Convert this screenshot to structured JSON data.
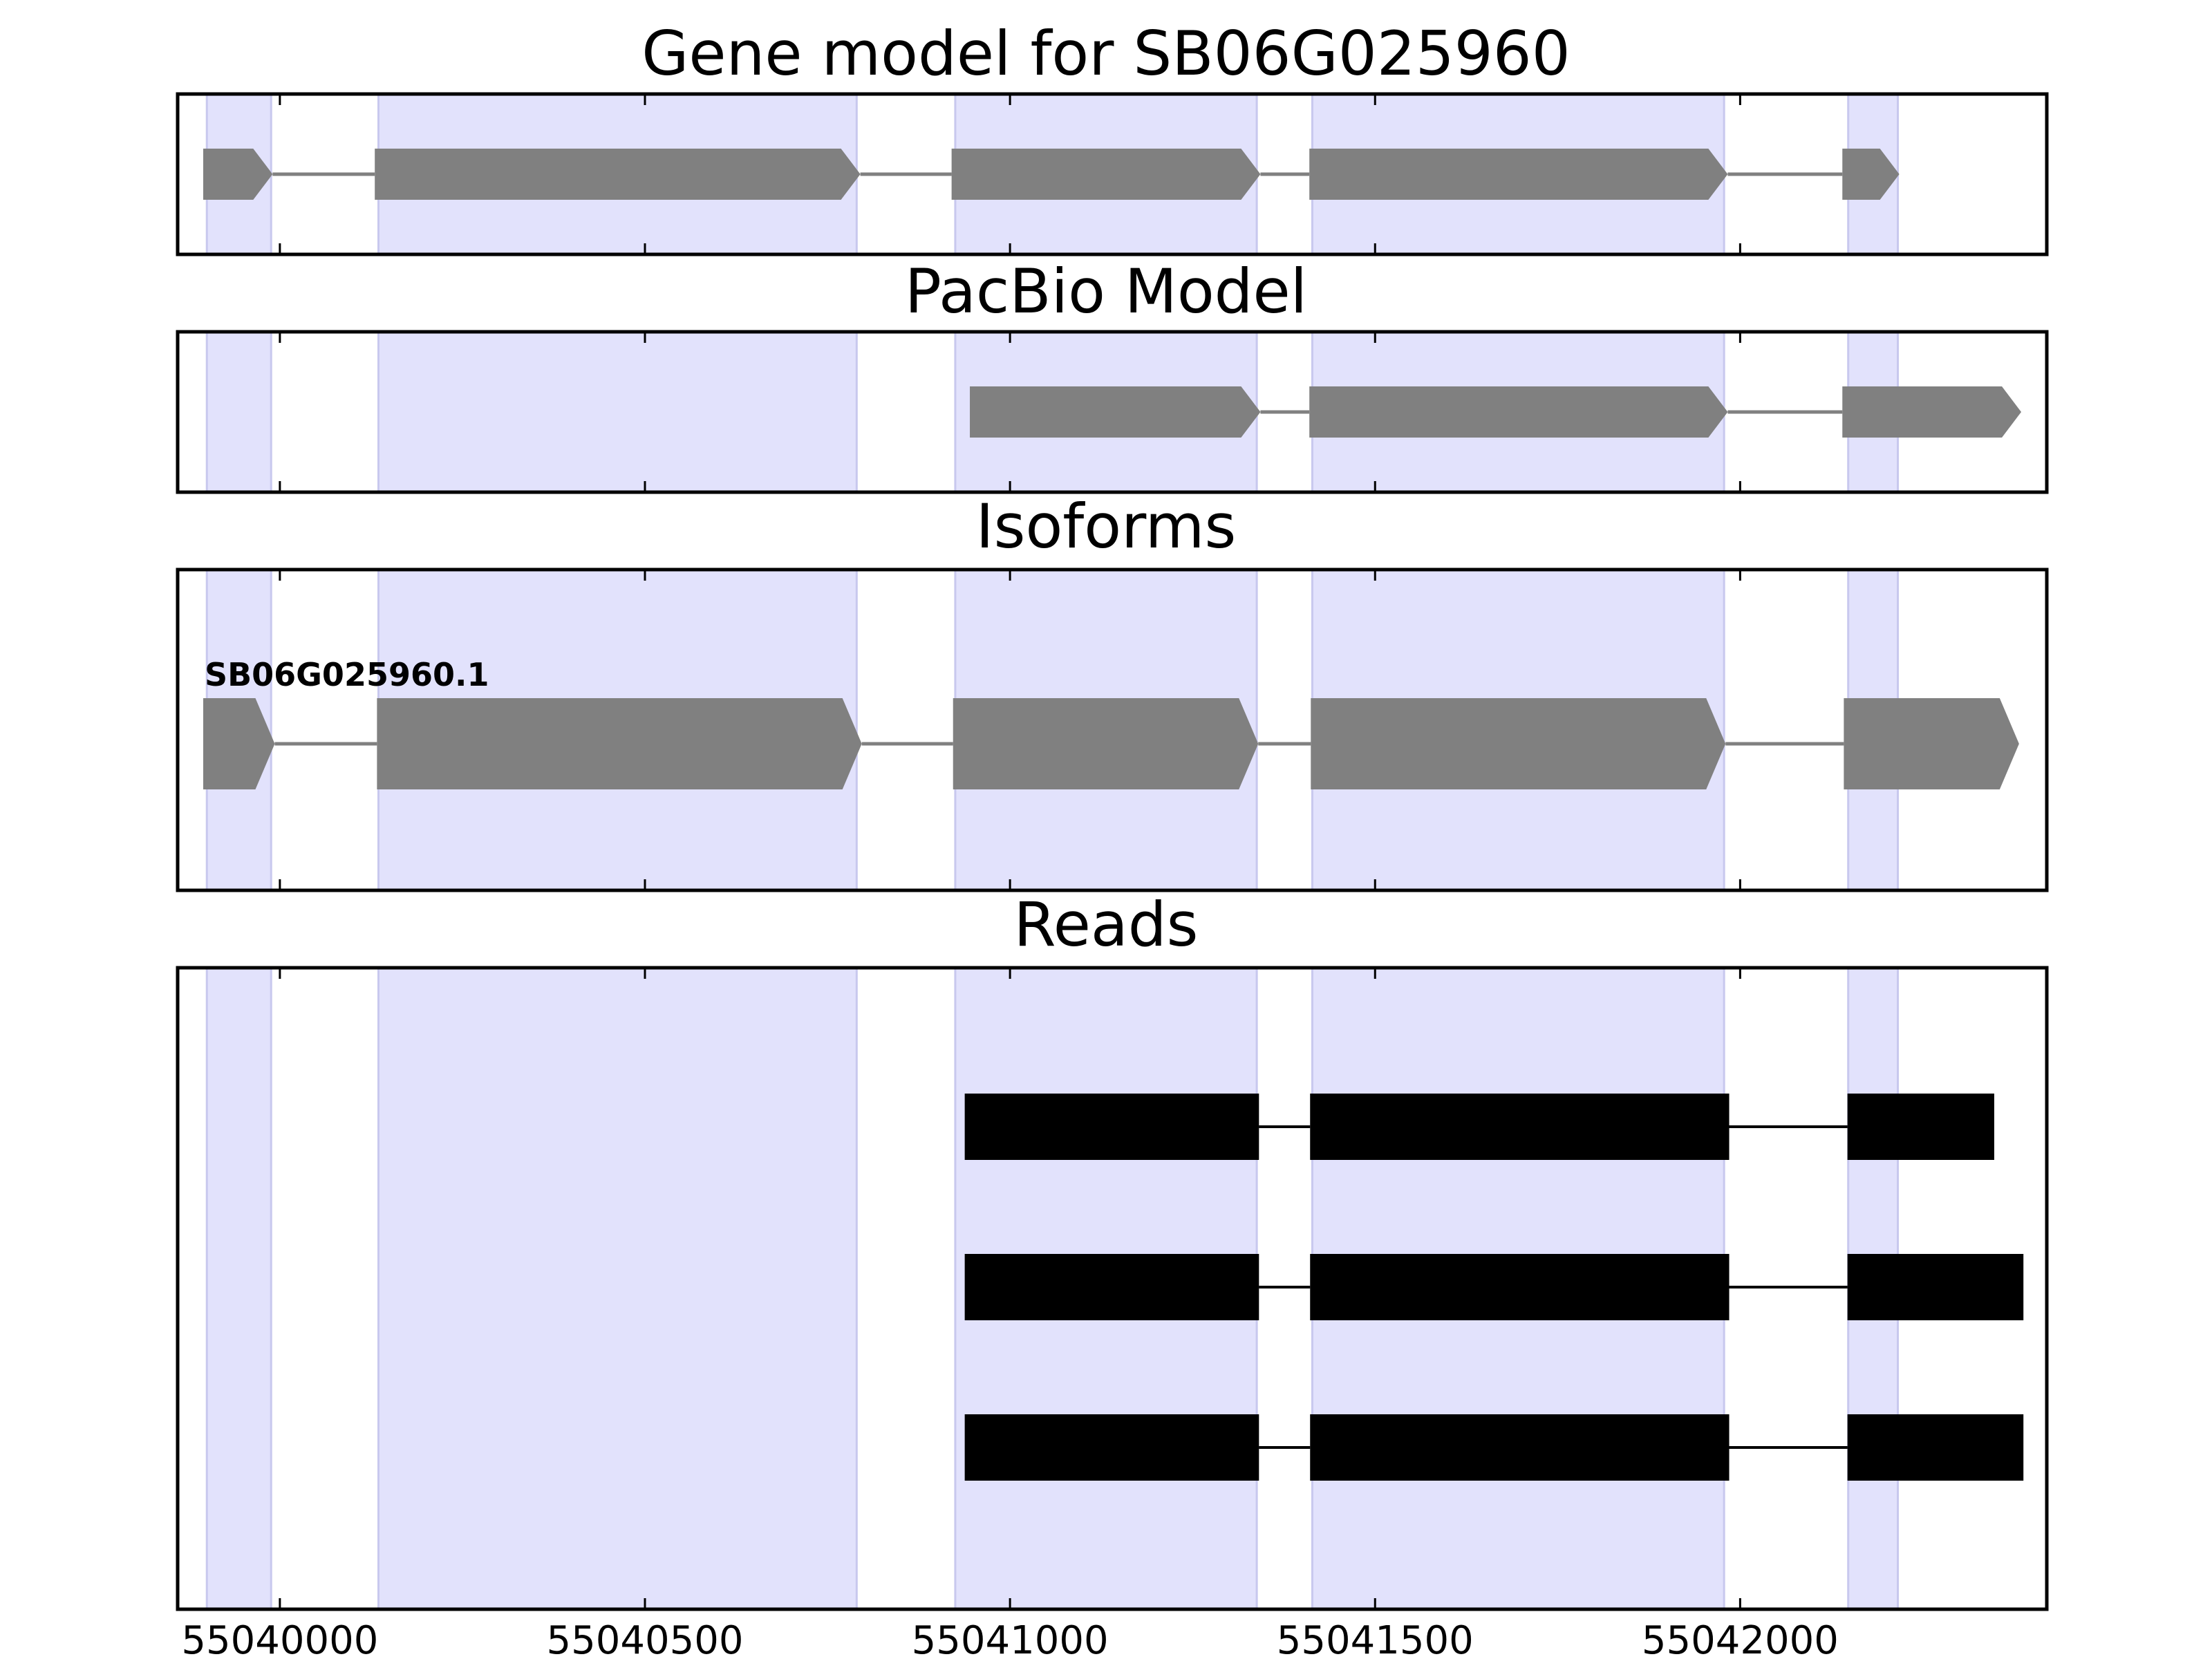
{
  "chart_data": {
    "type": "gene-model-track",
    "xlim": [
      55039860,
      55042420
    ],
    "x_ticks": [
      {
        "value": 55040000,
        "label": "55040000"
      },
      {
        "value": 55040500,
        "label": "55040500"
      },
      {
        "value": 55041000,
        "label": "55041000"
      },
      {
        "value": 55041500,
        "label": "55041500"
      },
      {
        "value": 55042000,
        "label": "55042000"
      }
    ],
    "highlight_color": "#e2e2fc",
    "feature_color": "#808080",
    "read_color": "#000000",
    "exon_highlights": [
      [
        55039900,
        55039988
      ],
      [
        55040135,
        55040790
      ],
      [
        55040925,
        55041338
      ],
      [
        55041414,
        55041978
      ],
      [
        55042148,
        55042216
      ]
    ],
    "panels": [
      {
        "title": "Gene model for SB06G025960",
        "style": "arrow",
        "rows": [
          {
            "label": "",
            "exons": [
              [
                55039895,
                55039990
              ],
              [
                55040130,
                55040795
              ],
              [
                55040920,
                55041343
              ],
              [
                55041410,
                55041983
              ],
              [
                55042140,
                55042218
              ]
            ]
          }
        ]
      },
      {
        "title": "PacBio Model",
        "style": "arrow",
        "rows": [
          {
            "label": "",
            "exons": [
              [
                55040945,
                55041343
              ],
              [
                55041410,
                55041983
              ],
              [
                55042140,
                55042385
              ]
            ]
          }
        ]
      },
      {
        "title": "Isoforms",
        "style": "arrow",
        "rows": [
          {
            "label": "SB06G025960.1",
            "exons": [
              [
                55039895,
                55039993
              ],
              [
                55040133,
                55040797
              ],
              [
                55040922,
                55041340
              ],
              [
                55041412,
                55041980
              ],
              [
                55042142,
                55042382
              ]
            ]
          }
        ]
      },
      {
        "title": "Reads",
        "style": "block",
        "rows": [
          {
            "label": "",
            "exons": [
              [
                55040938,
                55041341
              ],
              [
                55041411,
                55041985
              ],
              [
                55042147,
                55042348
              ]
            ]
          },
          {
            "label": "",
            "exons": [
              [
                55040938,
                55041341
              ],
              [
                55041411,
                55041985
              ],
              [
                55042147,
                55042388
              ]
            ]
          },
          {
            "label": "",
            "exons": [
              [
                55040938,
                55041341
              ],
              [
                55041411,
                55041985
              ],
              [
                55042147,
                55042388
              ]
            ]
          }
        ]
      }
    ]
  }
}
